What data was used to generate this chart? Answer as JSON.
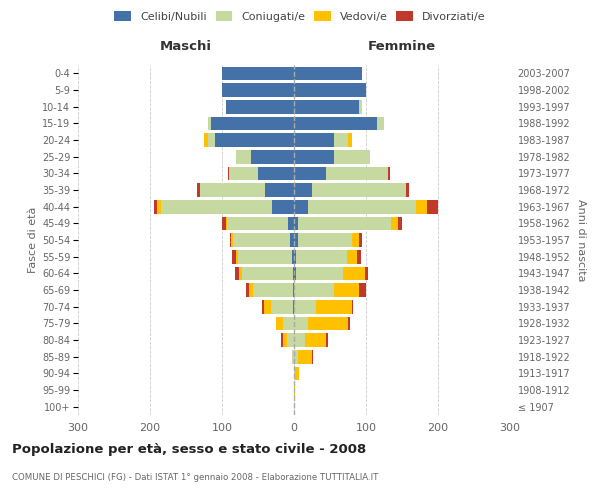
{
  "age_groups": [
    "100+",
    "95-99",
    "90-94",
    "85-89",
    "80-84",
    "75-79",
    "70-74",
    "65-69",
    "60-64",
    "55-59",
    "50-54",
    "45-49",
    "40-44",
    "35-39",
    "30-34",
    "25-29",
    "20-24",
    "15-19",
    "10-14",
    "5-9",
    "0-4"
  ],
  "birth_years": [
    "≤ 1907",
    "1908-1912",
    "1913-1917",
    "1918-1922",
    "1923-1927",
    "1928-1932",
    "1933-1937",
    "1938-1942",
    "1943-1947",
    "1948-1952",
    "1953-1957",
    "1958-1962",
    "1963-1967",
    "1968-1972",
    "1973-1977",
    "1978-1982",
    "1983-1987",
    "1988-1992",
    "1993-1997",
    "1998-2002",
    "2003-2007"
  ],
  "male": {
    "celibi": [
      0,
      0,
      0,
      0,
      0,
      0,
      2,
      2,
      2,
      3,
      5,
      8,
      30,
      40,
      50,
      60,
      110,
      115,
      95,
      100,
      100
    ],
    "coniugati": [
      0,
      0,
      0,
      3,
      10,
      15,
      30,
      55,
      70,
      75,
      80,
      85,
      155,
      90,
      40,
      20,
      10,
      5,
      0,
      0,
      0
    ],
    "vedovi": [
      0,
      0,
      0,
      0,
      5,
      10,
      10,
      5,
      5,
      3,
      2,
      2,
      5,
      0,
      0,
      0,
      5,
      0,
      0,
      0,
      0
    ],
    "divorziati": [
      0,
      0,
      0,
      0,
      3,
      0,
      2,
      5,
      5,
      5,
      2,
      5,
      5,
      5,
      2,
      0,
      0,
      0,
      0,
      0,
      0
    ]
  },
  "female": {
    "nubili": [
      0,
      0,
      0,
      0,
      0,
      0,
      0,
      0,
      3,
      3,
      5,
      5,
      20,
      25,
      45,
      55,
      55,
      115,
      90,
      100,
      95
    ],
    "coniugate": [
      0,
      0,
      2,
      5,
      15,
      20,
      30,
      55,
      65,
      70,
      75,
      130,
      150,
      130,
      85,
      50,
      20,
      10,
      5,
      0,
      0
    ],
    "vedove": [
      0,
      2,
      5,
      20,
      30,
      55,
      50,
      35,
      30,
      15,
      10,
      10,
      15,
      0,
      0,
      0,
      5,
      0,
      0,
      0,
      0
    ],
    "divorziate": [
      0,
      0,
      0,
      2,
      2,
      3,
      2,
      10,
      5,
      5,
      5,
      5,
      15,
      5,
      3,
      0,
      0,
      0,
      0,
      0,
      0
    ]
  },
  "colors": {
    "celibi": "#4472a8",
    "coniugati": "#c5d9a0",
    "vedovi": "#ffc000",
    "divorziati": "#c0392b"
  },
  "title": "Popolazione per età, sesso e stato civile - 2008",
  "subtitle": "COMUNE DI PESCHICI (FG) - Dati ISTAT 1° gennaio 2008 - Elaborazione TUTTITALIA.IT",
  "xlabel_left": "Maschi",
  "xlabel_right": "Femmine",
  "ylabel_left": "Fasce di età",
  "ylabel_right": "Anni di nascita",
  "xlim": 300,
  "background_color": "#ffffff",
  "grid_color": "#cccccc",
  "dashed_line_color": "#aaaaaa"
}
